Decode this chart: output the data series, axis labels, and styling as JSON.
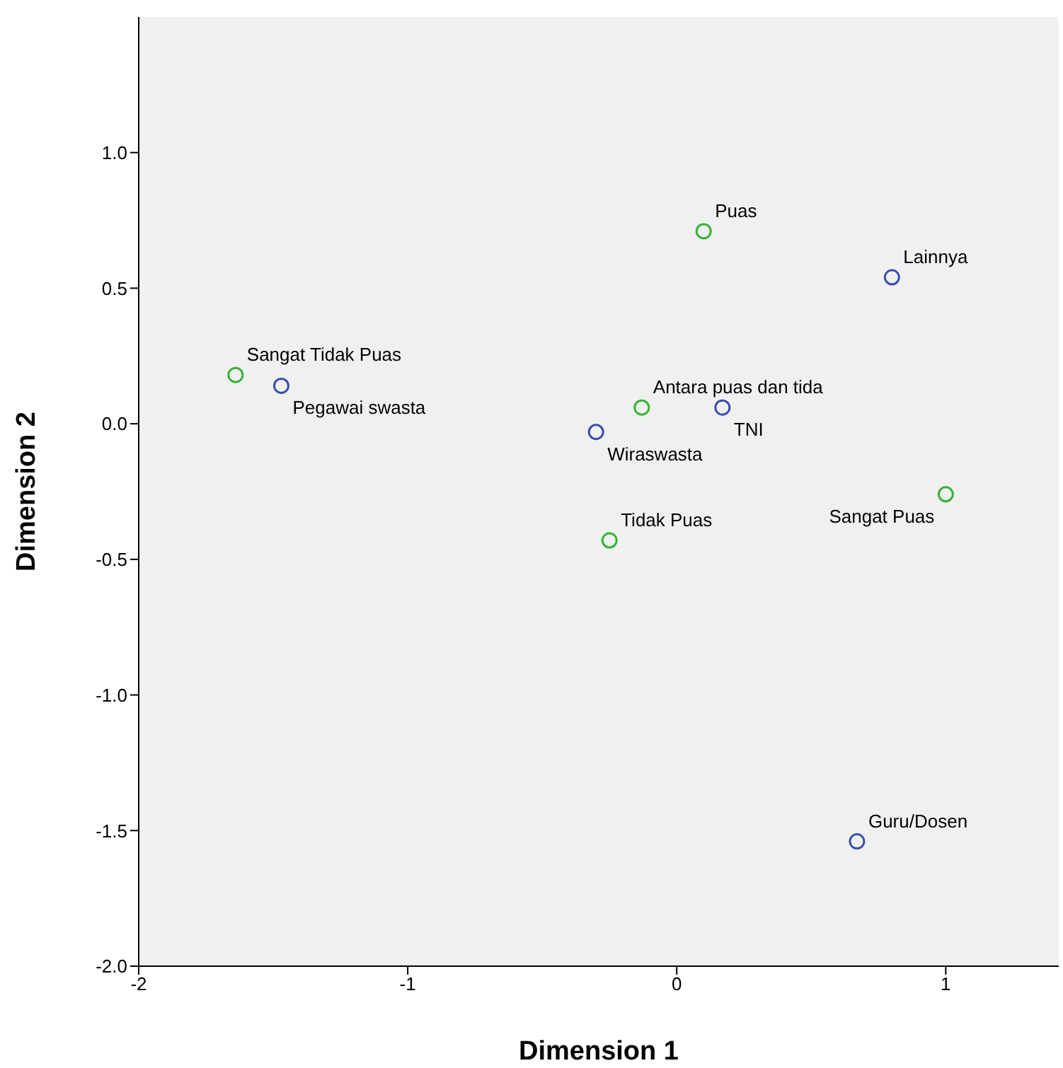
{
  "chart_data": {
    "type": "scatter",
    "xlabel": "Dimension 1",
    "ylabel": "Dimension 2",
    "xlim": [
      -2,
      1.42
    ],
    "ylim": [
      -2,
      1.5
    ],
    "xticks": [
      -2,
      -1,
      0,
      1
    ],
    "yticks": [
      {
        "value": -2,
        "label": "-2.0"
      },
      {
        "value": -1.5,
        "label": "-1.5"
      },
      {
        "value": -1,
        "label": "-1.0"
      },
      {
        "value": -0.5,
        "label": "-0.5"
      },
      {
        "value": 0,
        "label": "0.0"
      },
      {
        "value": 0.5,
        "label": "0.5"
      },
      {
        "value": 1,
        "label": "1.0"
      }
    ],
    "marker": "circle",
    "grid": false,
    "legend": false,
    "series": [
      {
        "color": "#3a4fb0",
        "x": [
          -1.47,
          -0.3,
          0.17,
          0.8,
          0.67
        ],
        "values": [
          0.14,
          -0.03,
          0.06,
          0.54,
          -1.54
        ]
      },
      {
        "color": "#33b533",
        "x": [
          -1.64,
          0.1,
          -0.13,
          -0.25,
          1.0
        ],
        "values": [
          0.18,
          0.71,
          0.06,
          -0.43,
          -0.26
        ]
      }
    ],
    "annotations": [
      {
        "text": "Pegawai swasta",
        "x": -1.47,
        "y": 0.14
      },
      {
        "text": "Wiraswasta",
        "x": -0.3,
        "y": -0.03
      },
      {
        "text": "TNI",
        "x": 0.17,
        "y": 0.06
      },
      {
        "text": "Lainnya",
        "x": 0.8,
        "y": 0.54
      },
      {
        "text": "Guru/Dosen",
        "x": 0.67,
        "y": -1.54
      },
      {
        "text": "Sangat Tidak Puas",
        "x": -1.64,
        "y": 0.18
      },
      {
        "text": "Puas",
        "x": 0.1,
        "y": 0.71
      },
      {
        "text": "Antara puas dan tida",
        "x": -0.13,
        "y": 0.06
      },
      {
        "text": "Tidak Puas",
        "x": -0.25,
        "y": -0.43
      },
      {
        "text": "Sangat Puas",
        "x": 1.0,
        "y": -0.26
      }
    ]
  }
}
